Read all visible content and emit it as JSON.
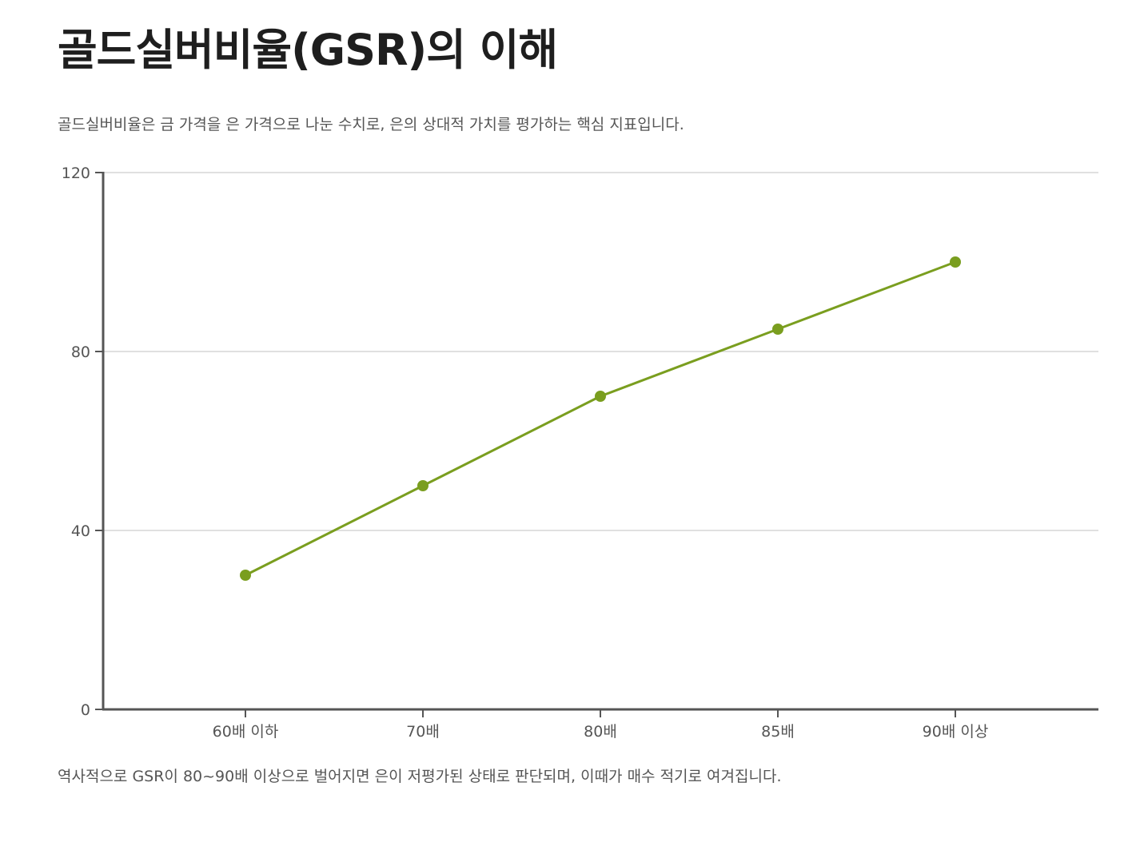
{
  "page": {
    "title": "골드실버비율(GSR)의 이해",
    "subtitle": "골드실버비율은 금 가격을 은 가격으로 나눈 수치로, 은의 상대적 가치를 평가하는 핵심 지표입니다.",
    "note": "역사적으로 GSR이 80~90배 이상으로 벌어지면 은이 저평가된 상태로 판단되며, 이때가 매수 적기로 여겨집니다."
  },
  "colors": {
    "series": "#7a9e1f",
    "axis": "#555555",
    "grid": "#d6d6d6"
  },
  "chart_data": {
    "type": "line",
    "title": "",
    "xlabel": "",
    "ylabel": "",
    "categories": [
      "60배 이하",
      "70배",
      "80배",
      "85배",
      "90배 이상"
    ],
    "series": [
      {
        "values": [
          30,
          50,
          70,
          85,
          100
        ]
      }
    ],
    "ylim": [
      0,
      120
    ],
    "yticks": [
      0,
      40,
      80,
      120
    ],
    "grid": true,
    "legend": "none"
  }
}
